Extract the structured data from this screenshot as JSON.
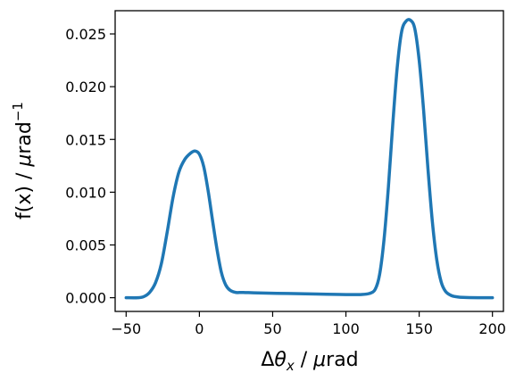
{
  "chart_data": {
    "type": "line",
    "xlabel": "Δθ_x / μrad",
    "ylabel": "f(x) / μrad⁻¹",
    "xlim": [
      -57.5,
      207.5
    ],
    "ylim": [
      -0.0013,
      0.0272
    ],
    "xticks": [
      -50,
      0,
      50,
      100,
      150,
      200
    ],
    "xtick_labels": [
      "−50",
      "0",
      "50",
      "100",
      "150",
      "200"
    ],
    "yticks": [
      0.0,
      0.005,
      0.01,
      0.015,
      0.02,
      0.025
    ],
    "ytick_labels": [
      "0.000",
      "0.005",
      "0.010",
      "0.015",
      "0.020",
      "0.025"
    ],
    "grid": false,
    "series": [
      {
        "color": "#1f77b4",
        "x": [
          -50,
          -42,
          -38,
          -34,
          -30,
          -26,
          -22,
          -18,
          -14,
          -10,
          -6,
          -3,
          0,
          3,
          6,
          9,
          12,
          15,
          18,
          21,
          25,
          30,
          40,
          60,
          80,
          100,
          110,
          116,
          120,
          123,
          126,
          129,
          132,
          135,
          138,
          141,
          144,
          147,
          150,
          153,
          156,
          159,
          162,
          165,
          168,
          172,
          176,
          180,
          190,
          200
        ],
        "y": [
          0.0,
          0.0,
          0.0001,
          0.0005,
          0.0014,
          0.0032,
          0.0062,
          0.0095,
          0.0119,
          0.0131,
          0.0137,
          0.0139,
          0.0136,
          0.0124,
          0.0101,
          0.0073,
          0.0046,
          0.0024,
          0.0012,
          0.0007,
          0.0005,
          0.0005,
          0.00045,
          0.0004,
          0.00035,
          0.0003,
          0.0003,
          0.0004,
          0.0008,
          0.0022,
          0.0055,
          0.0105,
          0.0165,
          0.0218,
          0.0252,
          0.0262,
          0.0263,
          0.0255,
          0.0225,
          0.0178,
          0.0122,
          0.0072,
          0.0036,
          0.0015,
          0.0006,
          0.0002,
          8e-05,
          3e-05,
          0.0,
          0.0
        ]
      }
    ]
  }
}
